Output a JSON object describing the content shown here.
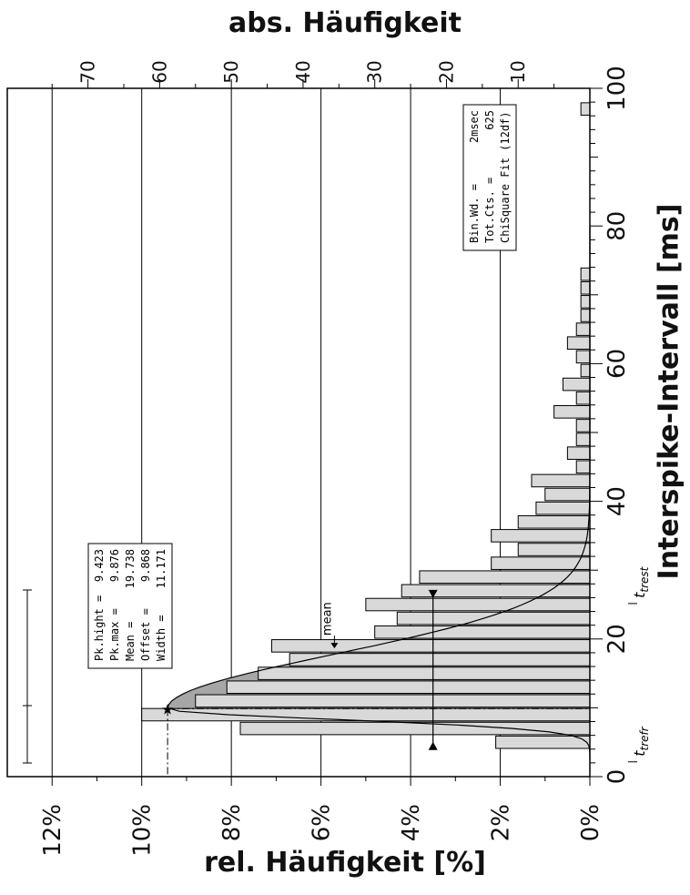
{
  "chart_data": {
    "type": "bar",
    "title_top": "abs. Häufigkeit",
    "title_bottom": "rel. Häufigkeit [%]",
    "ylabel_right": "Interspike-Intervall [ms]",
    "rel_ticks": [
      "0%",
      "2%",
      "4%",
      "6%",
      "8%",
      "10%",
      "12%"
    ],
    "rel_tick_values": [
      0,
      2,
      4,
      6,
      8,
      10,
      12
    ],
    "abs_ticks": [
      "10",
      "20",
      "30",
      "40",
      "50",
      "60",
      "70"
    ],
    "abs_tick_values": [
      10,
      20,
      30,
      40,
      50,
      60,
      70
    ],
    "interval_ticks": [
      "0",
      "20",
      "40",
      "60",
      "80",
      "100"
    ],
    "interval_tick_values": [
      0,
      20,
      40,
      60,
      80,
      100
    ],
    "interval_range": [
      0,
      100
    ],
    "rel_range": [
      0,
      13
    ],
    "counts_per_percent": 6.25,
    "bars": [
      {
        "x": 5,
        "rel": 2.1
      },
      {
        "x": 7,
        "rel": 7.8
      },
      {
        "x": 9,
        "rel": 10.0
      },
      {
        "x": 11,
        "rel": 8.8
      },
      {
        "x": 13,
        "rel": 8.1
      },
      {
        "x": 15,
        "rel": 7.4
      },
      {
        "x": 17,
        "rel": 6.7
      },
      {
        "x": 19,
        "rel": 7.1
      },
      {
        "x": 21,
        "rel": 4.8
      },
      {
        "x": 23,
        "rel": 4.3
      },
      {
        "x": 25,
        "rel": 5.0
      },
      {
        "x": 27,
        "rel": 4.2
      },
      {
        "x": 29,
        "rel": 3.8
      },
      {
        "x": 31,
        "rel": 2.2
      },
      {
        "x": 33,
        "rel": 1.6
      },
      {
        "x": 35,
        "rel": 2.2
      },
      {
        "x": 37,
        "rel": 1.6
      },
      {
        "x": 39,
        "rel": 1.2
      },
      {
        "x": 41,
        "rel": 1.0
      },
      {
        "x": 43,
        "rel": 1.3
      },
      {
        "x": 45,
        "rel": 0.3
      },
      {
        "x": 47,
        "rel": 0.5
      },
      {
        "x": 49,
        "rel": 0.3
      },
      {
        "x": 51,
        "rel": 0.3
      },
      {
        "x": 53,
        "rel": 0.8
      },
      {
        "x": 55,
        "rel": 0.3
      },
      {
        "x": 57,
        "rel": 0.6
      },
      {
        "x": 59,
        "rel": 0.2
      },
      {
        "x": 61,
        "rel": 0.3
      },
      {
        "x": 63,
        "rel": 0.5
      },
      {
        "x": 65,
        "rel": 0.3
      },
      {
        "x": 67,
        "rel": 0.2
      },
      {
        "x": 69,
        "rel": 0.2
      },
      {
        "x": 71,
        "rel": 0.2
      },
      {
        "x": 73,
        "rel": 0.2
      },
      {
        "x": 97,
        "rel": 0.2
      }
    ],
    "fit": {
      "offset": 9.868,
      "width": 11.171,
      "peak": 9.423
    },
    "box1": [
      {
        "label": "Pk.hight =",
        "value": "9.423"
      },
      {
        "label": "Pk.max   =",
        "value": "9.876"
      },
      {
        "label": "Mean     =",
        "value": "19.738"
      },
      {
        "label": "Offset   =",
        "value": "9.868"
      },
      {
        "label": "Width    =",
        "value": "11.171"
      }
    ],
    "box2": [
      {
        "label": "Bin.Wd.  =",
        "value": "2msec"
      },
      {
        "label": "Tot.Cts. =",
        "value": "625"
      },
      {
        "label": "ChiSquare Fit (12df)",
        "value": ""
      }
    ],
    "mean_label": "mean",
    "mean_value": 19.7,
    "t_refr_label": "t",
    "t_refr_sub": "trefr",
    "t_refr_x": 4,
    "t_rest_label": "t",
    "t_rest_sub": "trest",
    "t_rest_x": 27,
    "marker_level": 3.5,
    "grid": true,
    "colors": {
      "bar": "#d9d9d9",
      "fit_fill": "#a6a6a6",
      "line": "#000000"
    }
  }
}
